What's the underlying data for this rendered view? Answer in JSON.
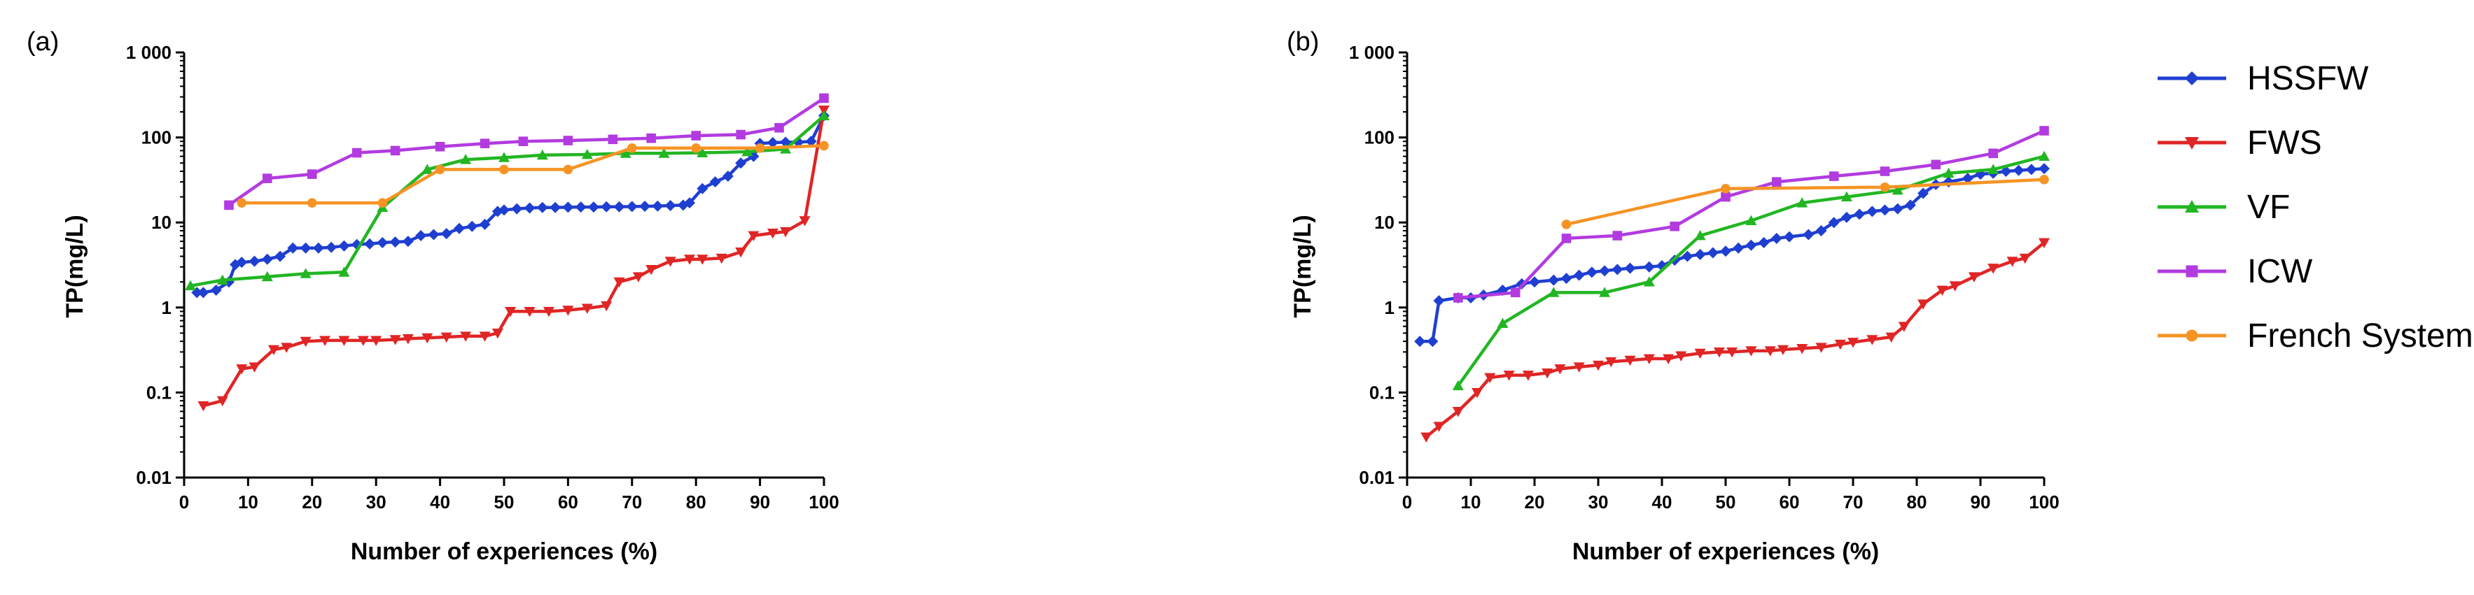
{
  "figure": {
    "legend": {
      "placement": "right",
      "entries": [
        {
          "name": "HSSFW",
          "color": "#1f3fd1",
          "marker": "diamond"
        },
        {
          "name": "FWS",
          "color": "#e02525",
          "marker": "triangle-down"
        },
        {
          "name": "VF",
          "color": "#22b622",
          "marker": "triangle-up"
        },
        {
          "name": "ICW",
          "color": "#b23be0",
          "marker": "square"
        },
        {
          "name": "French System",
          "color": "#f59424",
          "marker": "circle"
        }
      ]
    }
  },
  "chart_data": [
    {
      "type": "line",
      "panel_label": "(a)",
      "title": "",
      "xlabel": "Number of experiences (%)",
      "ylabel": "TP(mg/L)",
      "xlim": [
        0,
        100
      ],
      "ylim": [
        0.01,
        1000
      ],
      "yscale": "log",
      "x_ticks": [
        0,
        10,
        20,
        30,
        40,
        50,
        60,
        70,
        80,
        90,
        100
      ],
      "x_tick_labels": [
        "0",
        "10",
        "20",
        "30",
        "40",
        "50",
        "60",
        "70",
        "80",
        "90",
        "100"
      ],
      "y_ticks": [
        0.01,
        0.1,
        1,
        10,
        100,
        1000
      ],
      "y_tick_labels": [
        "0.01",
        "0.1",
        "1",
        "10",
        "100",
        "1 000"
      ],
      "grid": false,
      "series": [
        {
          "name": "HSSFW",
          "color": "#1f3fd1",
          "marker": "diamond",
          "x": [
            2,
            3,
            5,
            7,
            8,
            9,
            11,
            13,
            15,
            17,
            19,
            21,
            23,
            25,
            27,
            29,
            31,
            33,
            35,
            37,
            39,
            41,
            43,
            45,
            47,
            49,
            50,
            52,
            54,
            56,
            58,
            60,
            62,
            64,
            66,
            68,
            70,
            72,
            74,
            76,
            78,
            79,
            81,
            83,
            85,
            87,
            89,
            90,
            92,
            94,
            96,
            98,
            100
          ],
          "y": [
            1.5,
            1.5,
            1.6,
            2.0,
            3.2,
            3.4,
            3.5,
            3.7,
            4.0,
            5.0,
            5.0,
            5.0,
            5.1,
            5.3,
            5.5,
            5.6,
            5.8,
            5.9,
            6.0,
            7.0,
            7.2,
            7.4,
            8.5,
            9.0,
            9.5,
            13.5,
            14.0,
            14.5,
            14.8,
            15.0,
            15.0,
            15.1,
            15.2,
            15.2,
            15.3,
            15.3,
            15.4,
            15.5,
            15.6,
            15.8,
            16.0,
            17.0,
            25,
            30,
            35,
            50,
            60,
            85,
            87,
            88,
            88,
            90,
            180
          ]
        },
        {
          "name": "FWS",
          "color": "#e02525",
          "marker": "triangle-down",
          "x": [
            3,
            6,
            9,
            11,
            14,
            16,
            19,
            22,
            25,
            28,
            30,
            33,
            35,
            38,
            41,
            44,
            47,
            49,
            51,
            54,
            57,
            60,
            63,
            66,
            68,
            71,
            73,
            76,
            79,
            81,
            84,
            87,
            89,
            92,
            94,
            97,
            100
          ],
          "y": [
            0.07,
            0.08,
            0.19,
            0.2,
            0.32,
            0.34,
            0.4,
            0.41,
            0.41,
            0.41,
            0.41,
            0.42,
            0.43,
            0.44,
            0.45,
            0.46,
            0.46,
            0.5,
            0.9,
            0.9,
            0.9,
            0.93,
            0.98,
            1.05,
            2.0,
            2.3,
            2.8,
            3.5,
            3.7,
            3.7,
            3.8,
            4.5,
            7.0,
            7.5,
            7.8,
            10.5,
            210
          ]
        },
        {
          "name": "VF",
          "color": "#22b622",
          "marker": "triangle-up",
          "x": [
            1,
            6,
            13,
            19,
            25,
            31,
            38,
            44,
            50,
            56,
            63,
            69,
            75,
            81,
            88,
            94,
            100
          ],
          "y": [
            1.8,
            2.1,
            2.3,
            2.5,
            2.6,
            15.0,
            42.0,
            55.0,
            58.0,
            62.0,
            63.0,
            65.0,
            65.0,
            66.0,
            68.0,
            73.0,
            180.0
          ]
        },
        {
          "name": "ICW",
          "color": "#b23be0",
          "marker": "square",
          "x": [
            7,
            13,
            20,
            27,
            33,
            40,
            47,
            53,
            60,
            67,
            73,
            80,
            87,
            93,
            100
          ],
          "y": [
            16,
            33,
            37,
            66,
            70,
            78,
            85,
            90,
            92,
            95,
            98,
            105,
            108,
            130,
            290
          ]
        },
        {
          "name": "French System",
          "color": "#f59424",
          "marker": "circle",
          "x": [
            9,
            20,
            31,
            40,
            50,
            60,
            70,
            80,
            90,
            100
          ],
          "y": [
            17,
            17,
            17,
            42,
            42,
            42,
            75,
            75,
            75,
            80
          ]
        }
      ]
    },
    {
      "type": "line",
      "panel_label": "(b)",
      "title": "",
      "xlabel": "Number of experiences (%)",
      "ylabel": "TP(mg/L)",
      "xlim": [
        0,
        100
      ],
      "ylim": [
        0.01,
        1000
      ],
      "yscale": "log",
      "x_ticks": [
        0,
        10,
        20,
        30,
        40,
        50,
        60,
        70,
        80,
        90,
        100
      ],
      "x_tick_labels": [
        "0",
        "10",
        "20",
        "30",
        "40",
        "50",
        "60",
        "70",
        "80",
        "90",
        "100"
      ],
      "y_ticks": [
        0.01,
        0.1,
        1,
        10,
        100,
        1000
      ],
      "y_tick_labels": [
        "0.01",
        "0.1",
        "1",
        "10",
        "100",
        "1 000"
      ],
      "grid": false,
      "series": [
        {
          "name": "HSSFW",
          "color": "#1f3fd1",
          "marker": "diamond",
          "x": [
            2,
            4,
            5,
            8,
            10,
            12,
            15,
            18,
            20,
            23,
            25,
            27,
            29,
            31,
            33,
            35,
            38,
            40,
            42,
            44,
            46,
            48,
            50,
            52,
            54,
            56,
            58,
            60,
            63,
            65,
            67,
            69,
            71,
            73,
            75,
            77,
            79,
            81,
            83,
            85,
            88,
            90,
            92,
            94,
            96,
            98,
            100
          ],
          "y": [
            0.4,
            0.4,
            1.2,
            1.3,
            1.3,
            1.4,
            1.6,
            1.9,
            2.0,
            2.1,
            2.2,
            2.4,
            2.6,
            2.7,
            2.8,
            2.9,
            3.0,
            3.1,
            3.6,
            4.0,
            4.2,
            4.4,
            4.6,
            5.0,
            5.4,
            5.8,
            6.5,
            6.8,
            7.2,
            8.0,
            10.0,
            11.5,
            12.5,
            13.5,
            14.0,
            14.5,
            16.0,
            22.0,
            28.0,
            30.0,
            33.0,
            37.0,
            38.0,
            40.0,
            41.0,
            42.0,
            43.0
          ]
        },
        {
          "name": "FWS",
          "color": "#e02525",
          "marker": "triangle-down",
          "x": [
            3,
            5,
            8,
            11,
            13,
            16,
            19,
            22,
            24,
            27,
            30,
            32,
            35,
            38,
            41,
            43,
            46,
            49,
            51,
            54,
            57,
            59,
            62,
            65,
            68,
            70,
            73,
            76,
            78,
            81,
            84,
            86,
            89,
            92,
            95,
            97,
            100
          ],
          "y": [
            0.03,
            0.04,
            0.06,
            0.1,
            0.15,
            0.16,
            0.16,
            0.17,
            0.19,
            0.2,
            0.21,
            0.23,
            0.24,
            0.25,
            0.25,
            0.27,
            0.29,
            0.3,
            0.3,
            0.31,
            0.31,
            0.32,
            0.33,
            0.34,
            0.37,
            0.39,
            0.42,
            0.45,
            0.6,
            1.1,
            1.6,
            1.8,
            2.3,
            2.9,
            3.5,
            3.8,
            5.8
          ]
        },
        {
          "name": "VF",
          "color": "#22b622",
          "marker": "triangle-up",
          "x": [
            8,
            15,
            23,
            31,
            38,
            46,
            54,
            62,
            69,
            77,
            85,
            92,
            100
          ],
          "y": [
            0.12,
            0.65,
            1.5,
            1.5,
            2.0,
            7.0,
            10.5,
            17.0,
            20.0,
            24.0,
            38.0,
            42.0,
            60.0
          ]
        },
        {
          "name": "ICW",
          "color": "#b23be0",
          "marker": "square",
          "x": [
            8,
            17,
            25,
            33,
            42,
            50,
            58,
            67,
            75,
            83,
            92,
            100
          ],
          "y": [
            1.3,
            1.5,
            6.5,
            7.0,
            9.0,
            20.0,
            30.0,
            35.0,
            40.0,
            48.0,
            65.0,
            120.0
          ]
        },
        {
          "name": "French System",
          "color": "#f59424",
          "marker": "circle",
          "x": [
            25,
            50,
            75,
            100
          ],
          "y": [
            9.5,
            25.0,
            26.0,
            32.0
          ]
        }
      ]
    }
  ]
}
